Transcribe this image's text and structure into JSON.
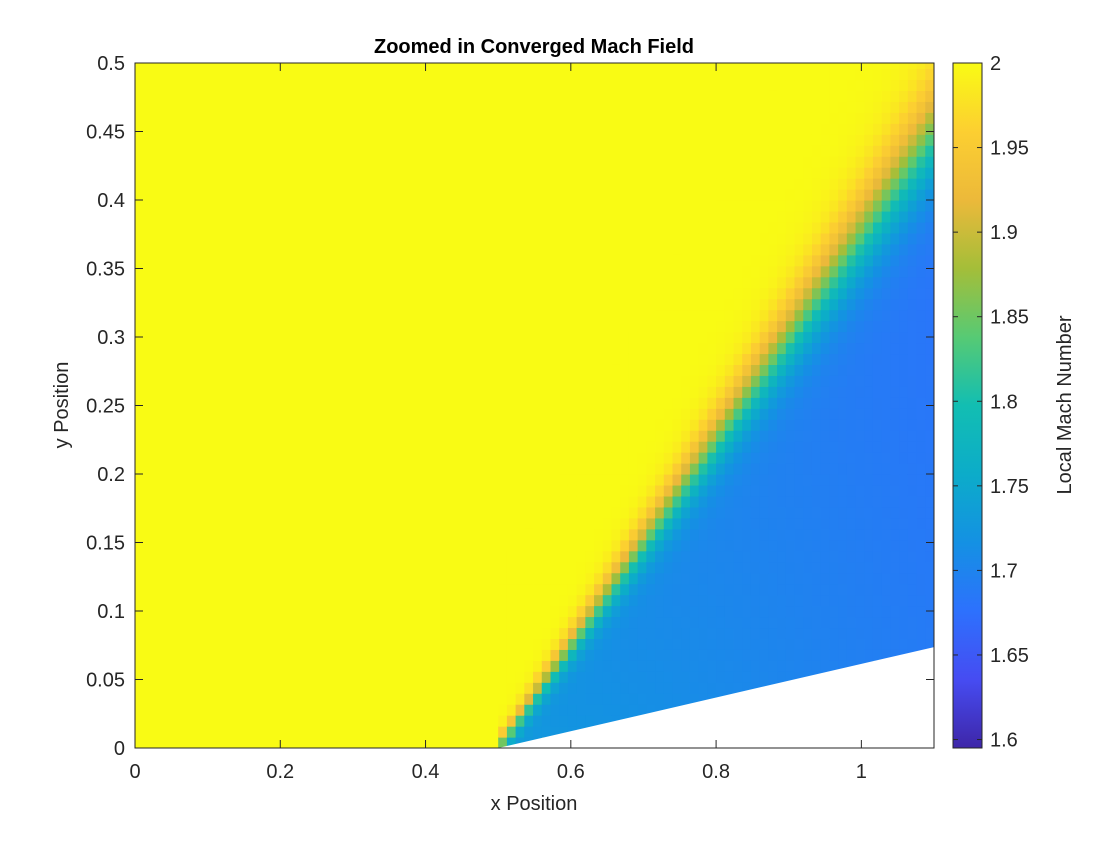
{
  "chart_data": {
    "type": "heatmap",
    "title": "Zoomed in Converged Mach Field",
    "xlabel": "x Position",
    "ylabel": "y Position",
    "xlim": [
      0,
      1.1
    ],
    "ylim": [
      0,
      0.5
    ],
    "x_ticks": [
      0,
      0.2,
      0.4,
      0.6,
      0.8,
      1
    ],
    "x_tick_labels": [
      "0",
      "0.2",
      "0.4",
      "0.6",
      "0.8",
      "1"
    ],
    "y_ticks": [
      0,
      0.05,
      0.1,
      0.15,
      0.2,
      0.25,
      0.3,
      0.35,
      0.4,
      0.45,
      0.5
    ],
    "y_tick_labels": [
      "0",
      "0.05",
      "0.1",
      "0.15",
      "0.2",
      "0.25",
      "0.3",
      "0.35",
      "0.4",
      "0.45",
      "0.5"
    ],
    "grid": false,
    "colormap": "parula",
    "colorbar": {
      "label": "Local Mach Number",
      "range": [
        1.595,
        2.0
      ],
      "ticks": [
        1.6,
        1.65,
        1.7,
        1.75,
        1.8,
        1.85,
        1.9,
        1.95,
        2
      ],
      "tick_labels": [
        "1.6",
        "1.65",
        "1.7",
        "1.75",
        "1.8",
        "1.85",
        "1.9",
        "1.95",
        "2"
      ]
    },
    "field": {
      "freestream_mach": 2.0,
      "post_shock_mach_near_wall": 1.73,
      "post_shock_mach_far": 1.69,
      "ramp_start_x": 0.5,
      "ramp_angle_deg": 7,
      "shock_angle_deg": 36.9,
      "shock_top_x": 1.1,
      "shock_top_y": 0.45
    }
  }
}
